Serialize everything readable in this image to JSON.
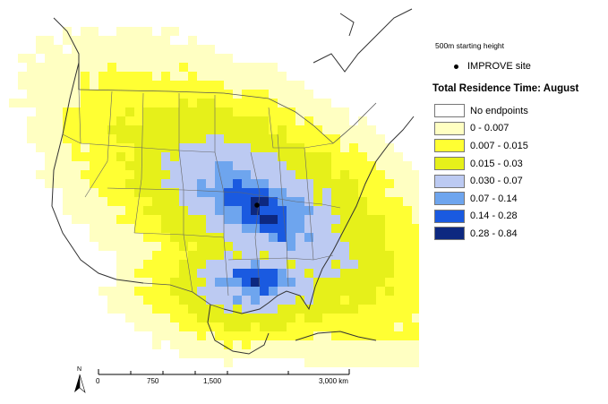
{
  "legend": {
    "starting_height": "500m starting height",
    "site_label": "IMPROVE site",
    "title": "Total Residence Time: August",
    "classes": [
      {
        "label": "No endpoints",
        "color": "#ffffff"
      },
      {
        "label": "0 - 0.007",
        "color": "#ffffc2"
      },
      {
        "label": "0.007 - 0.015",
        "color": "#ffff33"
      },
      {
        "label": "0.015 - 0.03",
        "color": "#e6f01a"
      },
      {
        "label": "0.030 - 0.07",
        "color": "#bccaf2"
      },
      {
        "label": "0.07 - 0.14",
        "color": "#6ea5ee"
      },
      {
        "label": "0.14 - 0.28",
        "color": "#1a5ae0"
      },
      {
        "label": "0.28 - 0.84",
        "color": "#0d2880"
      }
    ]
  },
  "scalebar": {
    "ticks": [
      "0",
      "750",
      "1,500",
      "3,000 km"
    ]
  },
  "north_arrow": {
    "label": "N",
    "icon": "north-arrow-icon"
  }
}
